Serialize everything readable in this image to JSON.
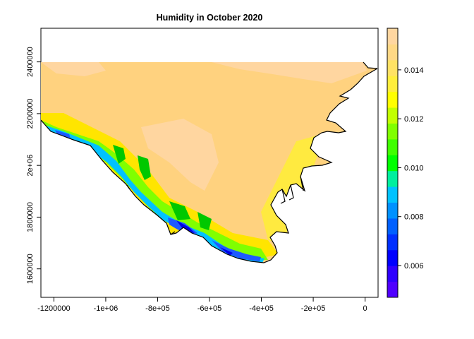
{
  "title": "Humidity in October 2020",
  "x_axis": {
    "range": [
      -1250000,
      50000
    ],
    "ticks": [
      {
        "value": -1200000,
        "label": "-1200000"
      },
      {
        "value": -1000000,
        "label": "-1e+06"
      },
      {
        "value": -800000,
        "label": "-8e+05"
      },
      {
        "value": -600000,
        "label": "-6e+05"
      },
      {
        "value": -400000,
        "label": "-4e+05"
      },
      {
        "value": -200000,
        "label": "-2e+05"
      },
      {
        "value": 0,
        "label": "0"
      }
    ]
  },
  "y_axis": {
    "range": [
      1490000,
      2530000
    ],
    "ticks": [
      {
        "value": 1600000,
        "label": "1600000"
      },
      {
        "value": 1800000,
        "label": "1800000"
      },
      {
        "value": 2000000,
        "label": "2e+06"
      },
      {
        "value": 2200000,
        "label": "2200000"
      },
      {
        "value": 2400000,
        "label": "2400000"
      }
    ]
  },
  "legend": {
    "range": [
      0.0047,
      0.0157
    ],
    "ticks": [
      {
        "value": 0.006,
        "label": "0.006"
      },
      {
        "value": 0.008,
        "label": "0.008"
      },
      {
        "value": 0.01,
        "label": "0.010"
      },
      {
        "value": 0.012,
        "label": "0.012"
      },
      {
        "value": 0.014,
        "label": "0.014"
      }
    ],
    "colors": [
      "#5000ff",
      "#2f00ff",
      "#0000ff",
      "#002fff",
      "#0060ff",
      "#0091ff",
      "#00c2ff",
      "#00ef9e",
      "#00ff00",
      "#3fff00",
      "#80ff00",
      "#c2ff00",
      "#ffff00",
      "#ffee3c",
      "#ffe264",
      "#ffd885",
      "#ffd6a0"
    ]
  },
  "map": {
    "land_color": "#ffd27f",
    "coast_bands": [
      "#ffe500",
      "#80ff00",
      "#00c800",
      "#00c2ff",
      "#1e5aff",
      "#0000e6"
    ]
  }
}
